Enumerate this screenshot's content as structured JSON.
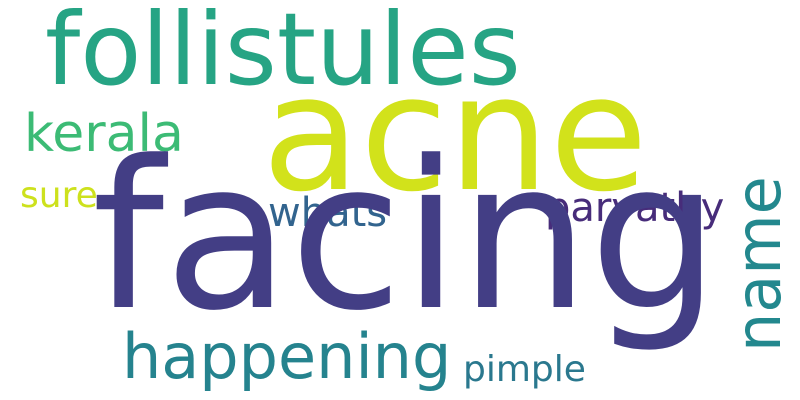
{
  "words": [
    {
      "id": "follistules",
      "text": "follistules",
      "color": "#26a484"
    },
    {
      "id": "acne",
      "text": "acne",
      "color": "#d2e21b"
    },
    {
      "id": "kerala",
      "text": "kerala",
      "color": "#3cbb75"
    },
    {
      "id": "sure",
      "text": "sure",
      "color": "#cde11d"
    },
    {
      "id": "whats",
      "text": "whats",
      "color": "#32648e"
    },
    {
      "id": "parvathy",
      "text": "parvathy",
      "color": "#472c7a"
    },
    {
      "id": "facing",
      "text": "facing",
      "color": "#433e85"
    },
    {
      "id": "name",
      "text": "name",
      "color": "#23888e"
    },
    {
      "id": "happening",
      "text": "happening",
      "color": "#25838e"
    },
    {
      "id": "pimple",
      "text": "pimple",
      "color": "#2a788e"
    }
  ]
}
